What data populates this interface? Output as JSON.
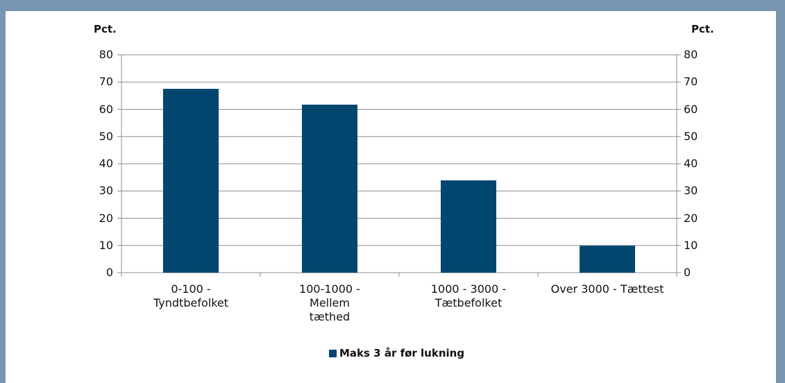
{
  "chart_data": {
    "type": "bar",
    "y_label": "Pct.",
    "y2_label": "Pct.",
    "categories": [
      "0-100 -\nTyndtbefolket",
      "100-1000 -\nMellem\ntæthed",
      "1000 - 3000 -\nTætbefolket",
      "Over 3000 - Tættest"
    ],
    "series": [
      {
        "name": "Maks 3 år før lukning",
        "color": "#00466e",
        "values": [
          67.5,
          61.7,
          33.9,
          9.9
        ]
      }
    ],
    "ylim": [
      0,
      80
    ],
    "yticks": [
      0,
      10,
      20,
      30,
      40,
      50,
      60,
      70,
      80
    ],
    "y2lim": [
      0,
      80
    ],
    "y2ticks": [
      0,
      10,
      20,
      30,
      40,
      50,
      60,
      70,
      80
    ],
    "grid": true,
    "legend": "bottom"
  }
}
